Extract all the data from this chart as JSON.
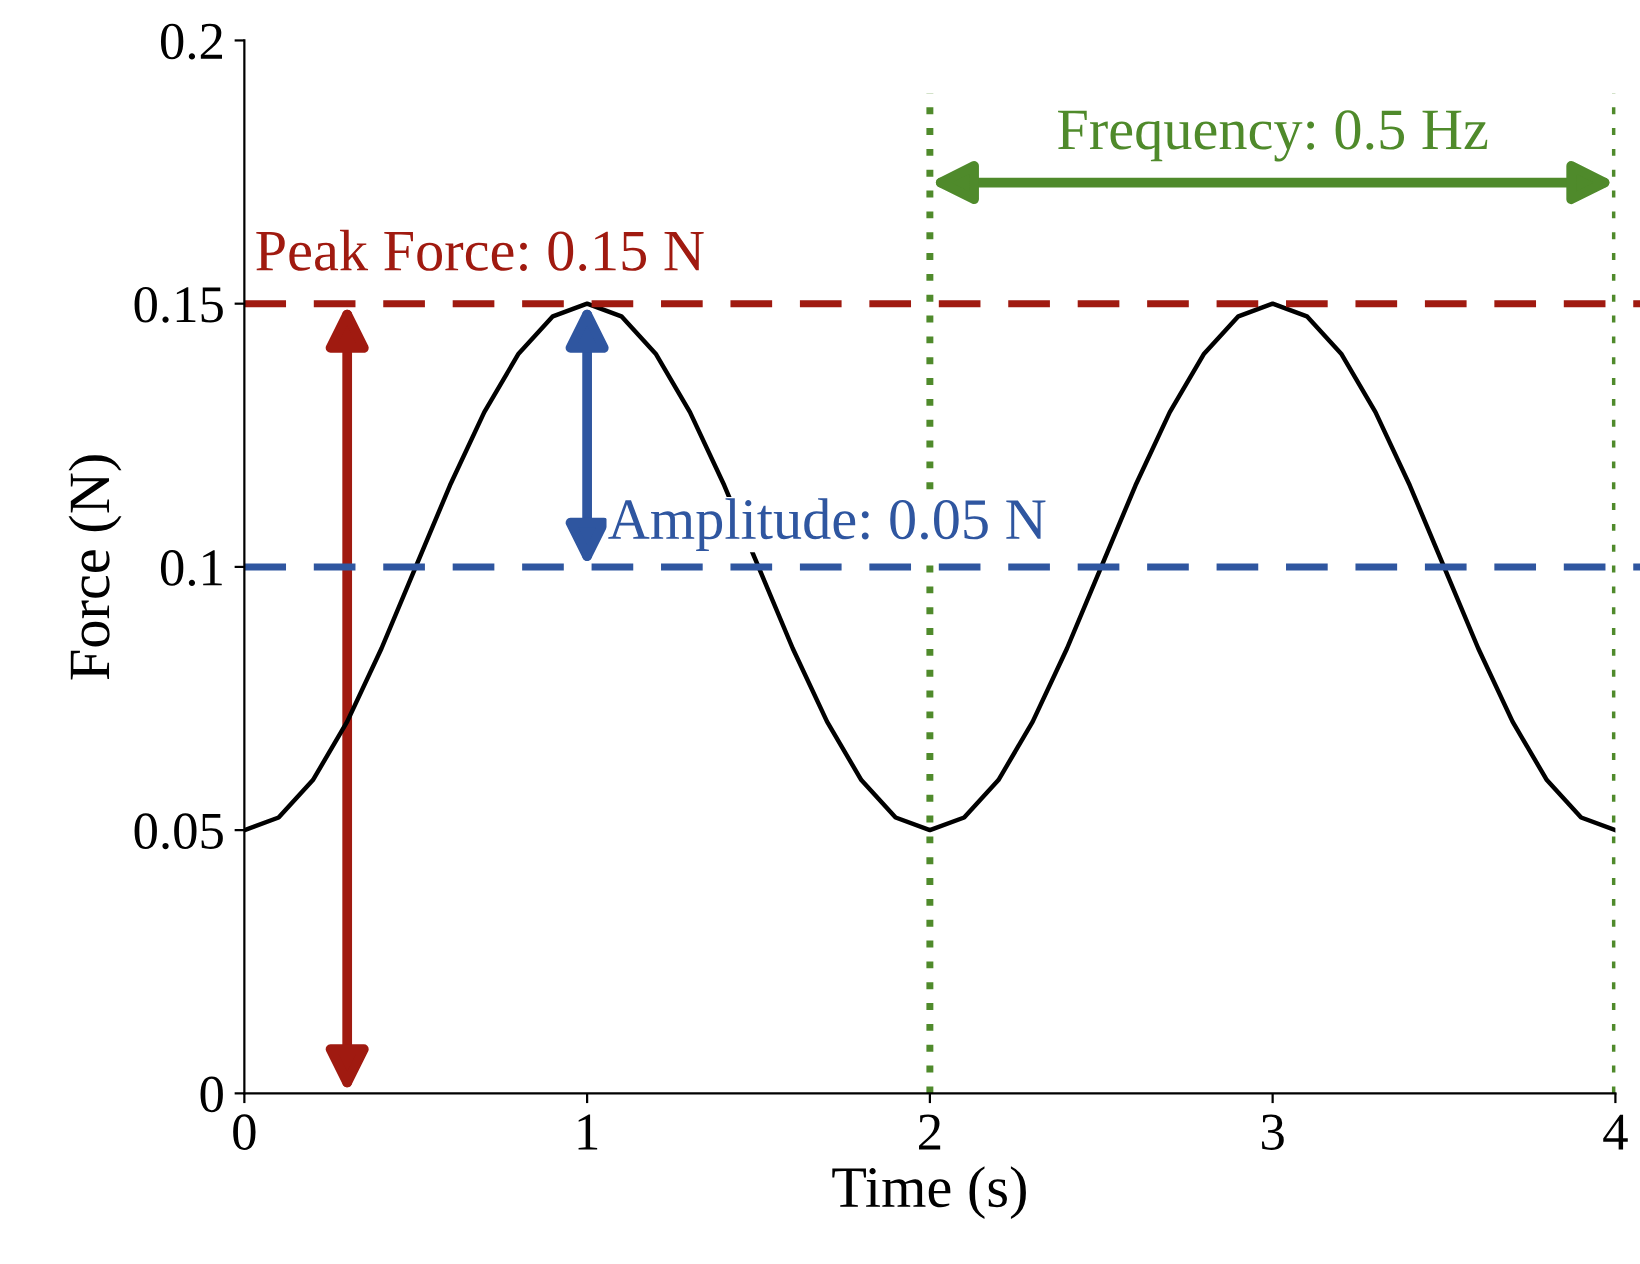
{
  "chart_data": {
    "type": "line",
    "xlabel": "Time (s)",
    "ylabel": "Force (N)",
    "x": [
      0,
      0.1,
      0.2,
      0.3,
      0.4,
      0.5,
      0.6,
      0.7,
      0.8,
      0.9,
      1,
      1.1,
      1.2,
      1.3,
      1.4,
      1.5,
      1.6,
      1.7,
      1.8,
      1.9,
      2,
      2.1,
      2.2,
      2.3,
      2.4,
      2.5,
      2.6,
      2.7,
      2.8,
      2.9,
      3,
      3.1,
      3.2,
      3.3,
      3.4,
      3.5,
      3.6,
      3.7,
      3.8,
      3.9,
      4
    ],
    "series": [
      {
        "color": "#000000",
        "values": [
          0.05,
          0.0524,
          0.0595,
          0.0706,
          0.0845,
          0.1,
          0.1155,
          0.1294,
          0.1405,
          0.1476,
          0.15,
          0.1476,
          0.1405,
          0.1294,
          0.1155,
          0.1,
          0.0845,
          0.0706,
          0.0595,
          0.0524,
          0.05,
          0.0524,
          0.0595,
          0.0706,
          0.0845,
          0.1,
          0.1155,
          0.1294,
          0.1405,
          0.1476,
          0.15,
          0.1476,
          0.1405,
          0.1294,
          0.1155,
          0.1,
          0.0845,
          0.0706,
          0.0595,
          0.0524,
          0.05
        ]
      }
    ],
    "xlim": [
      0,
      4
    ],
    "xticks": [
      0,
      1,
      2,
      3,
      4
    ],
    "ylim": [
      0,
      0.2
    ],
    "yticks": [
      0,
      0.05,
      0.1,
      0.15,
      0.2
    ],
    "grid": false,
    "marker": "none",
    "line_style": "solid",
    "ref_lines": [
      {
        "axis": "y",
        "value": 0.15,
        "label": "Peak Force: 0.15 N",
        "color": "#a01a10",
        "line_style": "dashed"
      },
      {
        "axis": "y",
        "value": 0.1,
        "color": "#2f56a0",
        "line_style": "dashed"
      },
      {
        "axis": "x",
        "value": 2,
        "color": "#4f8a2b",
        "line_style": "dotted"
      },
      {
        "axis": "x",
        "value": 4,
        "color": "#4f8a2b",
        "line_style": "dotted"
      }
    ],
    "annotations": [
      {
        "text": "Amplitude: 0.05 N",
        "x": 1,
        "y": 0.1
      },
      {
        "text": "Frequency: 0.5 Hz",
        "x": 3,
        "y": 0.15
      }
    ]
  }
}
